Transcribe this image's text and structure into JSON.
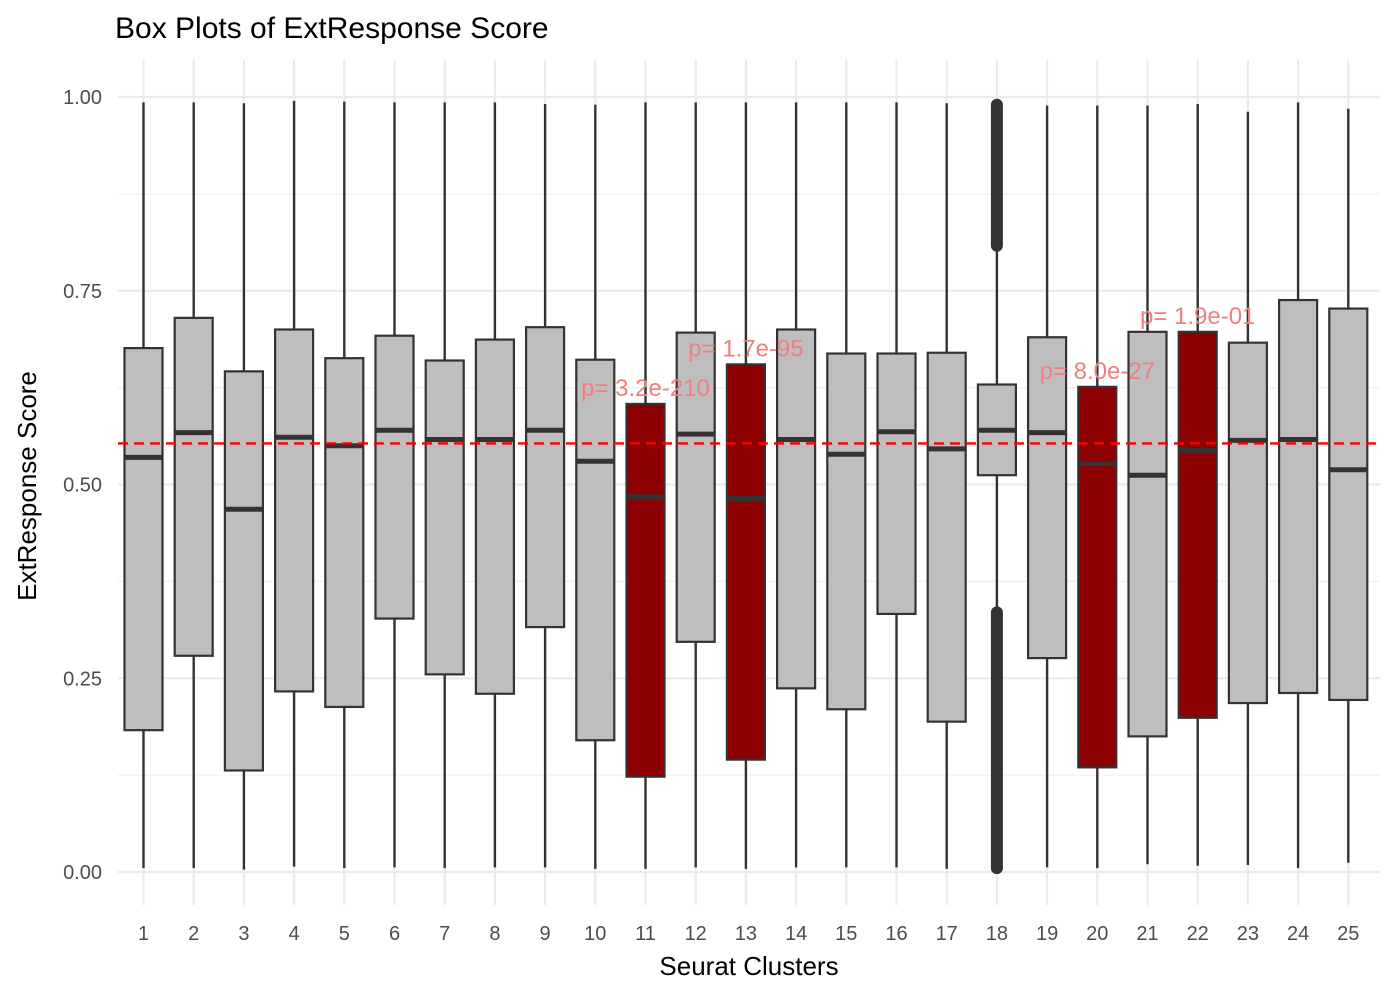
{
  "chart_data": {
    "type": "box",
    "title": "Box Plots of ExtResponse Score",
    "xlabel": "Seurat Clusters",
    "ylabel": "ExtResponse Score",
    "ylim": [
      -0.045,
      1.05
    ],
    "yticks": [
      0.0,
      0.25,
      0.5,
      0.75,
      1.0
    ],
    "ytick_labels": [
      "0.00",
      "0.25",
      "0.50",
      "0.75",
      "1.00"
    ],
    "grid": true,
    "reference_line": {
      "y": 0.553,
      "color": "#ff0000",
      "style": "dashed"
    },
    "colors": {
      "default_fill": "#bebebe",
      "highlight_fill": "#8b0000",
      "outline": "#333333",
      "annotation": "#f08080"
    },
    "categories": [
      "1",
      "2",
      "3",
      "4",
      "5",
      "6",
      "7",
      "8",
      "9",
      "10",
      "11",
      "12",
      "13",
      "14",
      "15",
      "16",
      "17",
      "18",
      "19",
      "20",
      "21",
      "22",
      "23",
      "24",
      "25"
    ],
    "boxes": [
      {
        "cluster": "1",
        "min": 0.005,
        "q1": 0.183,
        "median": 0.535,
        "q3": 0.676,
        "max": 0.993,
        "highlight": false
      },
      {
        "cluster": "2",
        "min": 0.005,
        "q1": 0.279,
        "median": 0.567,
        "q3": 0.715,
        "max": 0.993,
        "highlight": false
      },
      {
        "cluster": "3",
        "min": 0.003,
        "q1": 0.131,
        "median": 0.468,
        "q3": 0.646,
        "max": 0.992,
        "highlight": false
      },
      {
        "cluster": "4",
        "min": 0.007,
        "q1": 0.233,
        "median": 0.561,
        "q3": 0.7,
        "max": 0.995,
        "highlight": false
      },
      {
        "cluster": "5",
        "min": 0.005,
        "q1": 0.213,
        "median": 0.55,
        "q3": 0.663,
        "max": 0.994,
        "highlight": false
      },
      {
        "cluster": "6",
        "min": 0.006,
        "q1": 0.327,
        "median": 0.57,
        "q3": 0.692,
        "max": 0.993,
        "highlight": false
      },
      {
        "cluster": "7",
        "min": 0.005,
        "q1": 0.255,
        "median": 0.558,
        "q3": 0.66,
        "max": 0.993,
        "highlight": false
      },
      {
        "cluster": "8",
        "min": 0.006,
        "q1": 0.23,
        "median": 0.558,
        "q3": 0.687,
        "max": 0.993,
        "highlight": false
      },
      {
        "cluster": "9",
        "min": 0.006,
        "q1": 0.316,
        "median": 0.57,
        "q3": 0.703,
        "max": 0.991,
        "highlight": false
      },
      {
        "cluster": "10",
        "min": 0.004,
        "q1": 0.17,
        "median": 0.53,
        "q3": 0.661,
        "max": 0.99,
        "highlight": false
      },
      {
        "cluster": "11",
        "min": 0.004,
        "q1": 0.123,
        "median": 0.484,
        "q3": 0.604,
        "max": 0.993,
        "highlight": true,
        "pvalue": "p= 3.2e-210"
      },
      {
        "cluster": "12",
        "min": 0.006,
        "q1": 0.297,
        "median": 0.565,
        "q3": 0.696,
        "max": 0.993,
        "highlight": false
      },
      {
        "cluster": "13",
        "min": 0.004,
        "q1": 0.145,
        "median": 0.482,
        "q3": 0.655,
        "max": 0.993,
        "highlight": true,
        "pvalue": "p= 1.7e-95"
      },
      {
        "cluster": "14",
        "min": 0.006,
        "q1": 0.237,
        "median": 0.558,
        "q3": 0.7,
        "max": 0.993,
        "highlight": false
      },
      {
        "cluster": "15",
        "min": 0.006,
        "q1": 0.21,
        "median": 0.539,
        "q3": 0.669,
        "max": 0.993,
        "highlight": false
      },
      {
        "cluster": "16",
        "min": 0.006,
        "q1": 0.333,
        "median": 0.568,
        "q3": 0.669,
        "max": 0.993,
        "highlight": false
      },
      {
        "cluster": "17",
        "min": 0.004,
        "q1": 0.194,
        "median": 0.546,
        "q3": 0.67,
        "max": 0.992,
        "highlight": false
      },
      {
        "cluster": "18",
        "min": 0.335,
        "q1": 0.512,
        "median": 0.57,
        "q3": 0.629,
        "max": 0.808,
        "highlight": false,
        "outlier_bands": [
          [
            0.005,
            0.335
          ],
          [
            0.808,
            0.99
          ]
        ]
      },
      {
        "cluster": "19",
        "min": 0.006,
        "q1": 0.276,
        "median": 0.567,
        "q3": 0.69,
        "max": 0.989,
        "highlight": false
      },
      {
        "cluster": "20",
        "min": 0.005,
        "q1": 0.135,
        "median": 0.527,
        "q3": 0.626,
        "max": 0.989,
        "highlight": true,
        "pvalue": "p= 8.0e-27"
      },
      {
        "cluster": "21",
        "min": 0.01,
        "q1": 0.175,
        "median": 0.512,
        "q3": 0.697,
        "max": 0.989,
        "highlight": false
      },
      {
        "cluster": "22",
        "min": 0.008,
        "q1": 0.199,
        "median": 0.544,
        "q3": 0.697,
        "max": 0.991,
        "highlight": true,
        "pvalue": "p= 1.9e-01"
      },
      {
        "cluster": "23",
        "min": 0.009,
        "q1": 0.218,
        "median": 0.557,
        "q3": 0.683,
        "max": 0.981,
        "highlight": false
      },
      {
        "cluster": "24",
        "min": 0.005,
        "q1": 0.231,
        "median": 0.558,
        "q3": 0.738,
        "max": 0.993,
        "highlight": false
      },
      {
        "cluster": "25",
        "min": 0.012,
        "q1": 0.222,
        "median": 0.519,
        "q3": 0.727,
        "max": 0.985,
        "highlight": false
      }
    ]
  }
}
